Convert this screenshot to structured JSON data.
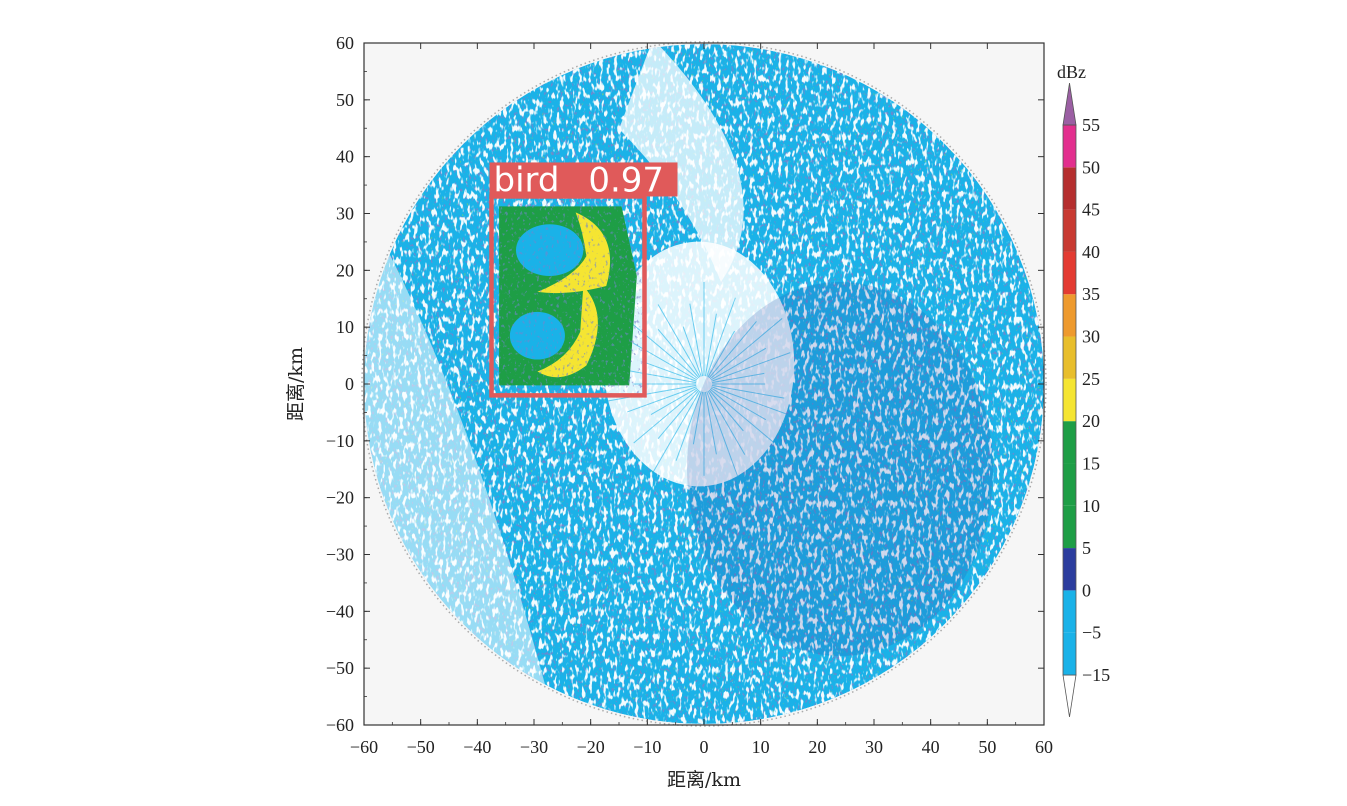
{
  "chart_data": {
    "type": "heatmap",
    "subtype": "radar-ppi",
    "xlabel": "距离/km",
    "ylabel": "距离/km",
    "xlim": [
      -60,
      60
    ],
    "ylim": [
      -60,
      60
    ],
    "xticks": [
      -60,
      -50,
      -40,
      -30,
      -20,
      -10,
      0,
      10,
      20,
      30,
      40,
      50,
      60
    ],
    "yticks": [
      60,
      50,
      40,
      30,
      20,
      10,
      0,
      -10,
      -20,
      -30,
      -40,
      -50,
      -60
    ],
    "xtick_labels": [
      "−60",
      "−50",
      "−40",
      "−30",
      "−20",
      "−10",
      "0",
      "10",
      "20",
      "30",
      "40",
      "50",
      "60"
    ],
    "ytick_labels": [
      "60",
      "50",
      "40",
      "30",
      "20",
      "10",
      "0",
      "−10",
      "−20",
      "−30",
      "−40",
      "−50",
      "−60"
    ],
    "radar_range_km": 60,
    "grid": false,
    "colorbar": {
      "unit": "dBz",
      "levels": [
        -15,
        -5,
        0,
        5,
        10,
        15,
        20,
        25,
        30,
        35,
        40,
        45,
        50,
        55
      ],
      "labels": [
        "−15",
        "−5",
        "0",
        "5",
        "10",
        "15",
        "20",
        "25",
        "30",
        "35",
        "40",
        "45",
        "50",
        "55"
      ],
      "colors": [
        "#1ab2e8",
        "#1ab2e8",
        "#2c3d9e",
        "#1e9e46",
        "#1e9e46",
        "#1e9e46",
        "#f5e532",
        "#e8be2c",
        "#ee9a2e",
        "#e33b32",
        "#c83a32",
        "#b52f2f",
        "#e22f8e",
        "#9b5fa3"
      ],
      "extend": "both"
    },
    "detection": {
      "label": "bird",
      "score": "0.97",
      "box_km": {
        "x0": -37.5,
        "x1": -10.5,
        "y0": -2.0,
        "y1": 33.0
      },
      "color": "#e05a5a"
    },
    "echo_regions": [
      {
        "name": "bird-echo",
        "level_dbz": 20,
        "color": "#f5e532"
      },
      {
        "name": "bird-echo",
        "level_dbz": 10,
        "color": "#1e9e46"
      },
      {
        "name": "clear-air",
        "level_dbz": -5,
        "color": "#1ab2e8"
      },
      {
        "name": "clear-air",
        "level_dbz": 0,
        "color": "#2c3d9e"
      }
    ]
  }
}
